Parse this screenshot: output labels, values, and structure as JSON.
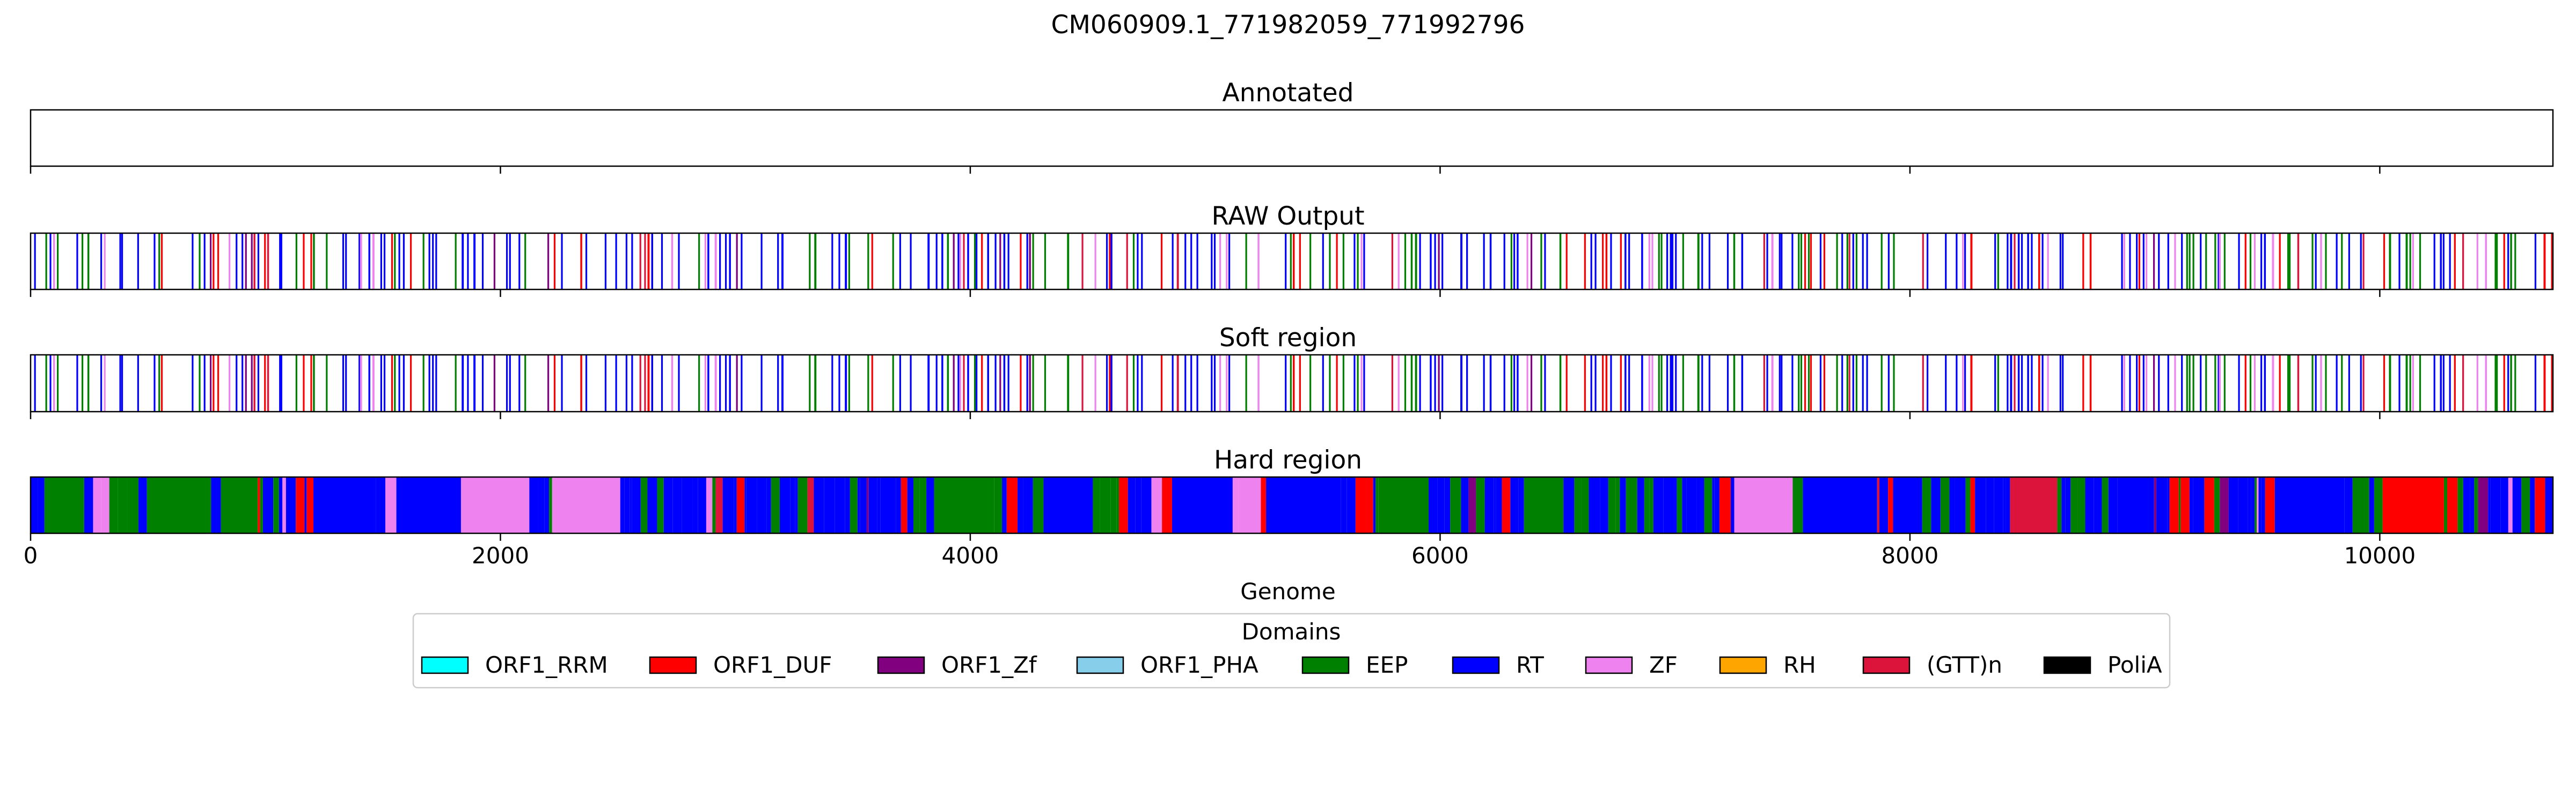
{
  "chart_data": {
    "type": "bar",
    "title": "CM060909.1_771982059_771992796",
    "xlabel": "Genome",
    "xlim": [
      0,
      10737
    ],
    "xticks": [
      0,
      2000,
      4000,
      6000,
      8000,
      10000
    ],
    "xtick_labels": [
      "0",
      "2000",
      "4000",
      "6000",
      "8000",
      "10000"
    ],
    "panels": [
      {
        "key": "annotated",
        "title": "Annotated",
        "segments": []
      },
      {
        "key": "raw",
        "title": "RAW Output",
        "segments": []
      },
      {
        "key": "soft",
        "title": "Soft region",
        "segments": []
      },
      {
        "key": "hard",
        "title": "Hard region",
        "segments": []
      }
    ],
    "legend": {
      "title": "Domains",
      "placement": "bottom-center",
      "entries": [
        {
          "label": "ORF1_RRM",
          "color": "#00ffff"
        },
        {
          "label": "ORF1_DUF",
          "color": "#ff0000"
        },
        {
          "label": "ORF1_Zf",
          "color": "#800080"
        },
        {
          "label": "ORF1_PHA",
          "color": "#87ceeb"
        },
        {
          "label": "EEP",
          "color": "#008000"
        },
        {
          "label": "RT",
          "color": "#0000ff"
        },
        {
          "label": "ZF",
          "color": "#ee82ee"
        },
        {
          "label": "RH",
          "color": "#ffa500"
        },
        {
          "label": "(GTT)n",
          "color": "#dc143c"
        },
        {
          "label": "PoliA",
          "color": "#000000"
        }
      ]
    }
  }
}
